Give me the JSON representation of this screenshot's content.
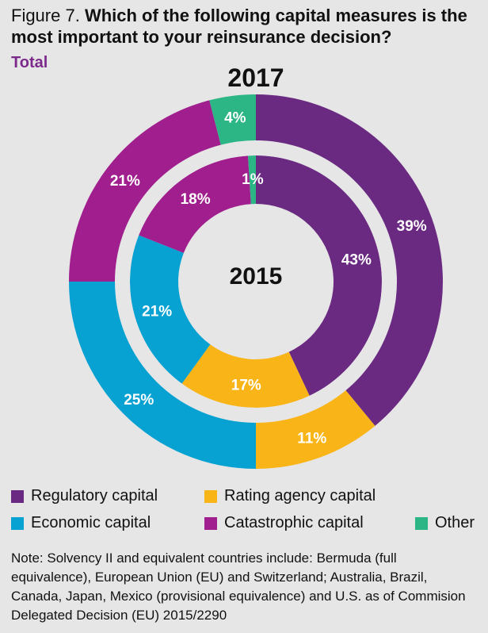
{
  "header": {
    "figure_label": "Figure 7.",
    "question": "Which of the following capital measures is the most important to your reinsurance decision?",
    "subtitle": "Total"
  },
  "chart_data": {
    "type": "pie",
    "style": "nested-donut",
    "outer_ring_label": "2017",
    "inner_ring_label": "2015",
    "categories": [
      "Regulatory capital",
      "Rating agency capital",
      "Economic capital",
      "Catastrophic capital",
      "Other"
    ],
    "series": [
      {
        "name": "2017",
        "ring": "outer",
        "values": [
          39,
          11,
          25,
          21,
          4
        ]
      },
      {
        "name": "2015",
        "ring": "inner",
        "values": [
          43,
          17,
          21,
          18,
          1
        ]
      }
    ],
    "colors": [
      "#6b2a82",
      "#f9b418",
      "#07a1d2",
      "#a01e8d",
      "#2cb585"
    ],
    "value_suffix": "%"
  },
  "legend": {
    "items": [
      {
        "label": "Regulatory capital",
        "color": "#6b2a82"
      },
      {
        "label": "Rating agency capital",
        "color": "#f9b418"
      },
      {
        "label": "Economic capital",
        "color": "#07a1d2"
      },
      {
        "label": "Catastrophic capital",
        "color": "#a01e8d"
      },
      {
        "label": "Other",
        "color": "#2cb585"
      }
    ]
  },
  "note": "Note: Solvency II and equivalent countries include: Bermuda (full equivalence), European Union (EU) and Switzerland; Australia, Brazil, Canada, Japan, Mexico (provisional equivalence) and U.S. as of Commision Delegated Decision (EU) 2015/2290"
}
